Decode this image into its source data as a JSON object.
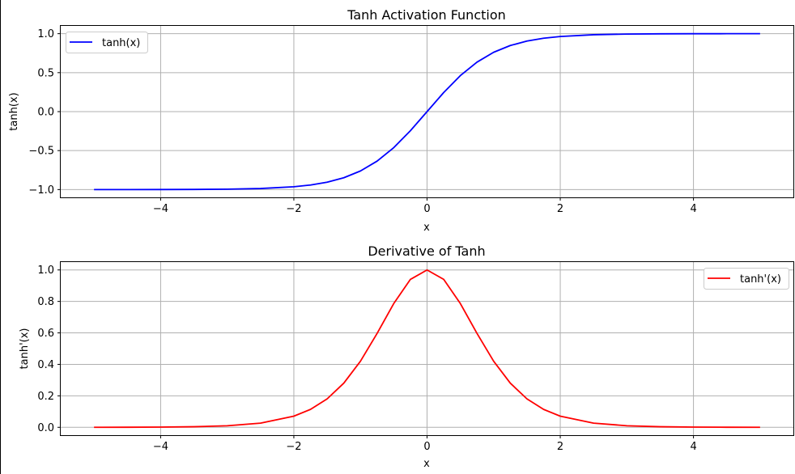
{
  "chart_data": [
    {
      "type": "line",
      "title": "Tanh Activation Function",
      "xlabel": "x",
      "ylabel": "tanh(x)",
      "xlim": [
        -5.5,
        5.5
      ],
      "ylim": [
        -1.1,
        1.1
      ],
      "xticks": [
        -4,
        -2,
        0,
        2,
        4
      ],
      "xtick_labels": [
        "−4",
        "−2",
        "0",
        "2",
        "4"
      ],
      "yticks": [
        -1.0,
        -0.5,
        0.0,
        0.5,
        1.0
      ],
      "ytick_labels": [
        "−1.0",
        "−0.5",
        "0.0",
        "0.5",
        "1.0"
      ],
      "grid": true,
      "legend": "upper-left",
      "series": [
        {
          "name": "tanh(x)",
          "color": "#0000ff",
          "x": [
            -5.0,
            -4.5,
            -4.0,
            -3.5,
            -3.0,
            -2.5,
            -2.0,
            -1.75,
            -1.5,
            -1.25,
            -1.0,
            -0.75,
            -0.5,
            -0.25,
            0.0,
            0.25,
            0.5,
            0.75,
            1.0,
            1.25,
            1.5,
            1.75,
            2.0,
            2.5,
            3.0,
            3.5,
            4.0,
            4.5,
            5.0
          ],
          "y": [
            -0.9999,
            -0.9998,
            -0.9993,
            -0.9982,
            -0.9951,
            -0.9866,
            -0.964,
            -0.9414,
            -0.9051,
            -0.8483,
            -0.7616,
            -0.6351,
            -0.4621,
            -0.2449,
            0.0,
            0.2449,
            0.4621,
            0.6351,
            0.7616,
            0.8483,
            0.9051,
            0.9414,
            0.964,
            0.9866,
            0.9951,
            0.9982,
            0.9993,
            0.9998,
            0.9999
          ]
        }
      ]
    },
    {
      "type": "line",
      "title": "Derivative of Tanh",
      "xlabel": "x",
      "ylabel": "tanh'(x)",
      "xlim": [
        -5.5,
        5.5
      ],
      "ylim": [
        -0.05,
        1.05
      ],
      "xticks": [
        -4,
        -2,
        0,
        2,
        4
      ],
      "xtick_labels": [
        "−4",
        "−2",
        "0",
        "2",
        "4"
      ],
      "yticks": [
        0.0,
        0.2,
        0.4,
        0.6,
        0.8,
        1.0
      ],
      "ytick_labels": [
        "0.0",
        "0.2",
        "0.4",
        "0.6",
        "0.8",
        "1.0"
      ],
      "grid": true,
      "legend": "upper-right",
      "series": [
        {
          "name": "tanh'(x)",
          "color": "#ff0000",
          "x": [
            -5.0,
            -4.5,
            -4.0,
            -3.5,
            -3.0,
            -2.5,
            -2.0,
            -1.75,
            -1.5,
            -1.25,
            -1.0,
            -0.75,
            -0.5,
            -0.25,
            0.0,
            0.25,
            0.5,
            0.75,
            1.0,
            1.25,
            1.5,
            1.75,
            2.0,
            2.5,
            3.0,
            3.5,
            4.0,
            4.5,
            5.0
          ],
          "y": [
            0.0002,
            0.0005,
            0.0013,
            0.0036,
            0.0099,
            0.0266,
            0.0707,
            0.1138,
            0.1807,
            0.2805,
            0.42,
            0.5966,
            0.7864,
            0.94,
            1.0,
            0.94,
            0.7864,
            0.5966,
            0.42,
            0.2805,
            0.1807,
            0.1138,
            0.0707,
            0.0266,
            0.0099,
            0.0036,
            0.0013,
            0.0005,
            0.0002
          ]
        }
      ]
    }
  ]
}
